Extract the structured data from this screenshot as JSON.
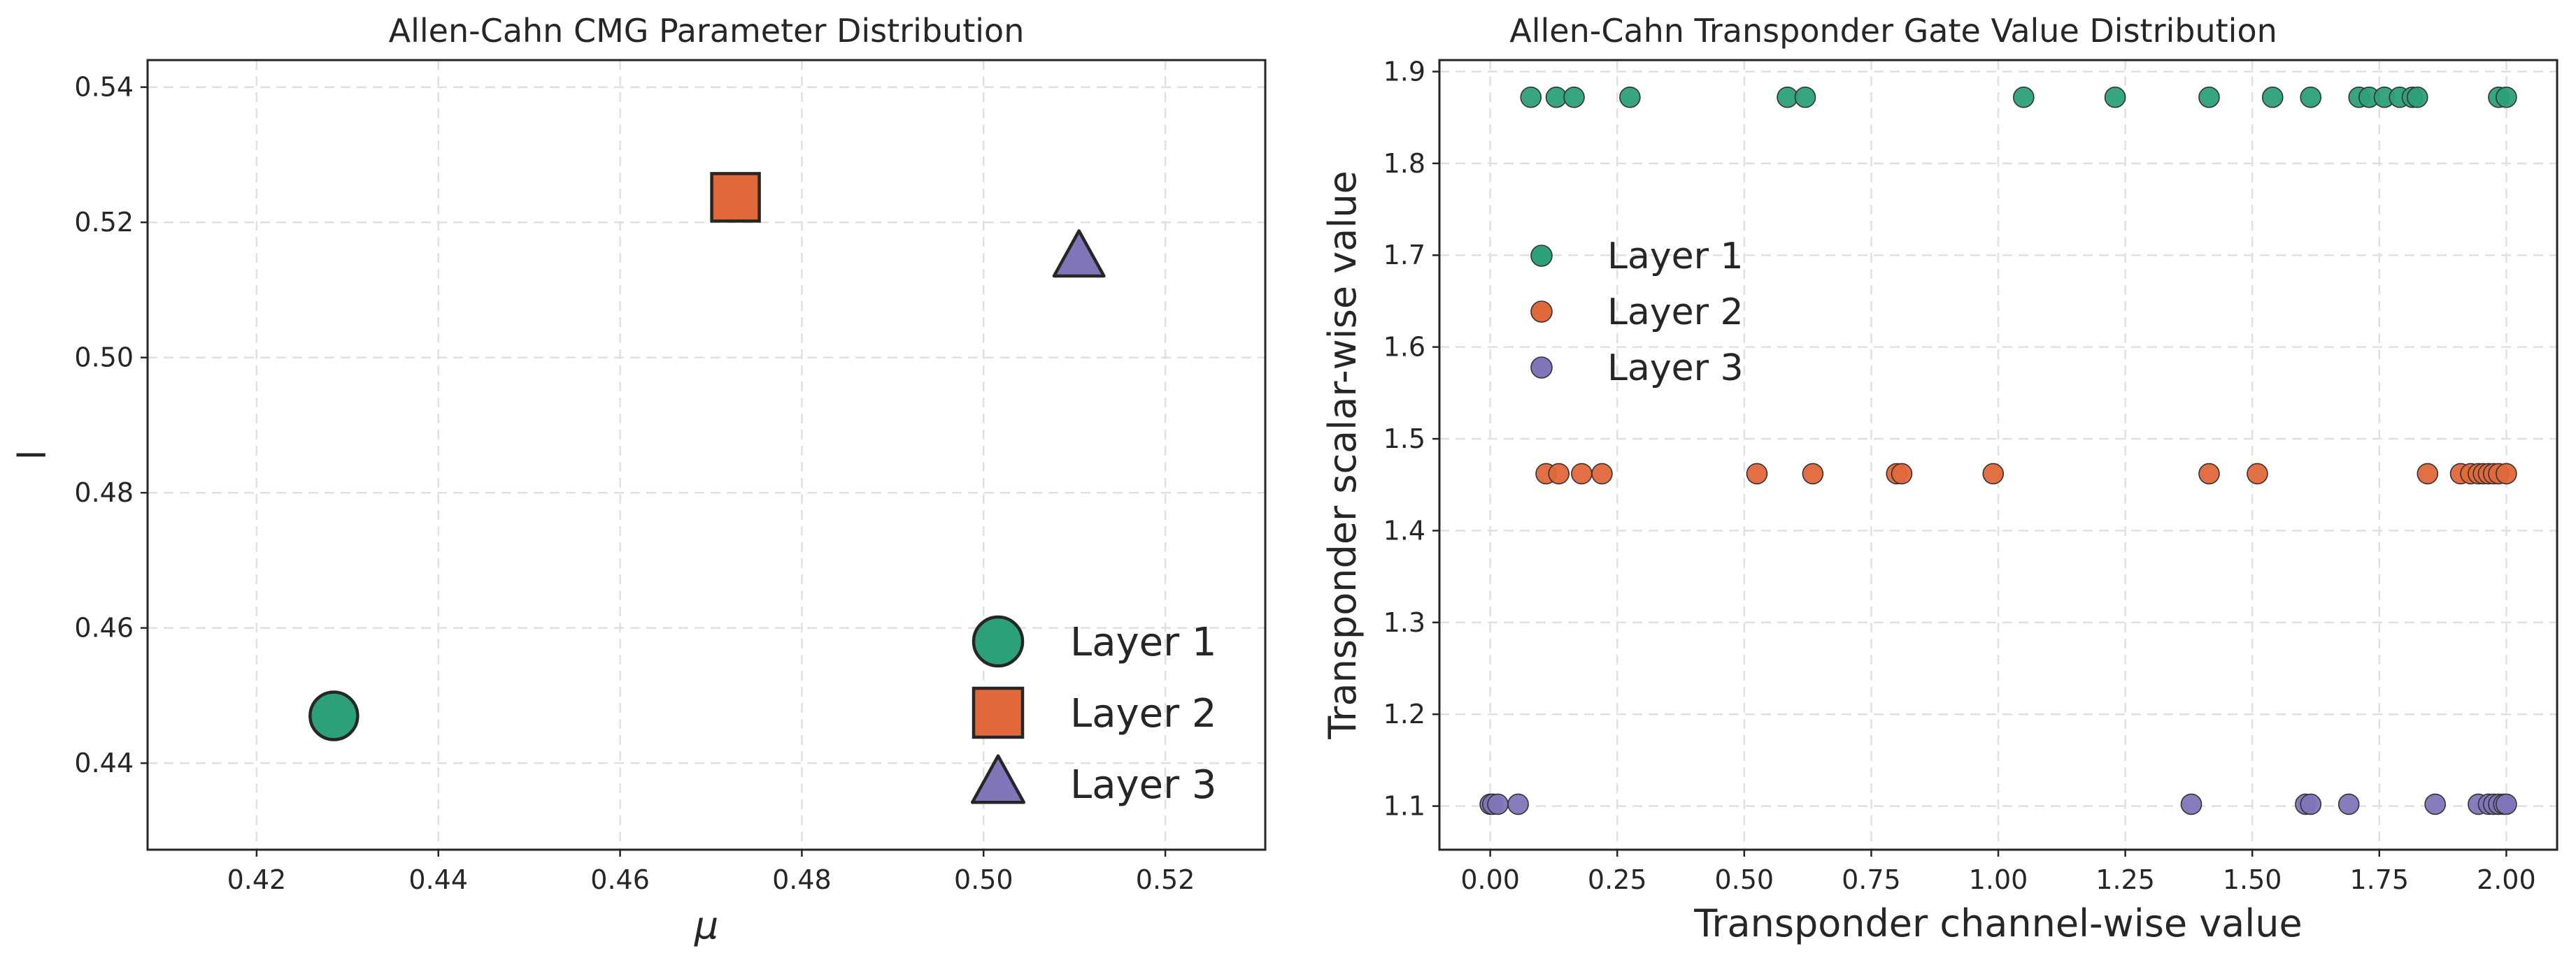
{
  "chart_data": [
    {
      "type": "scatter",
      "title": "Allen-Cahn CMG Parameter Distribution",
      "xlabel": "μ",
      "ylabel": "l",
      "xlim": [
        0.408,
        0.531
      ],
      "ylim": [
        0.4272,
        0.544
      ],
      "xticks": [
        0.42,
        0.44,
        0.46,
        0.48,
        0.5,
        0.52
      ],
      "yticks": [
        0.44,
        0.46,
        0.48,
        0.5,
        0.52,
        0.54
      ],
      "xtick_labels": [
        "0.42",
        "0.44",
        "0.46",
        "0.48",
        "0.50",
        "0.52"
      ],
      "ytick_labels": [
        "0.44",
        "0.46",
        "0.48",
        "0.50",
        "0.52",
        "0.54"
      ],
      "grid": true,
      "legend_position": "lower-right",
      "series": [
        {
          "name": "Layer 1",
          "marker": "circle",
          "color": "#2ca07a",
          "x": [
            0.4285
          ],
          "y": [
            0.447
          ]
        },
        {
          "name": "Layer 2",
          "marker": "square",
          "color": "#e0683a",
          "x": [
            0.4727
          ],
          "y": [
            0.5237
          ]
        },
        {
          "name": "Layer 3",
          "marker": "triangle",
          "color": "#7e76b8",
          "x": [
            0.5105
          ],
          "y": [
            0.5147
          ]
        }
      ]
    },
    {
      "type": "scatter",
      "title": "Allen-Cahn Transponder Gate Value Distribution",
      "xlabel": "Transponder channel-wise value",
      "ylabel": "Transponder scalar-wise value",
      "xlim": [
        -0.1,
        2.1
      ],
      "ylim": [
        1.0525,
        1.9125
      ],
      "xticks": [
        0.0,
        0.25,
        0.5,
        0.75,
        1.0,
        1.25,
        1.5,
        1.75,
        2.0
      ],
      "yticks": [
        1.1,
        1.2,
        1.3,
        1.4,
        1.5,
        1.6,
        1.7,
        1.8,
        1.9
      ],
      "xtick_labels": [
        "0.00",
        "0.25",
        "0.50",
        "0.75",
        "1.00",
        "1.25",
        "1.50",
        "1.75",
        "2.00"
      ],
      "ytick_labels": [
        "1.1",
        "1.2",
        "1.3",
        "1.4",
        "1.5",
        "1.6",
        "1.7",
        "1.8",
        "1.9"
      ],
      "grid": true,
      "legend_position": "upper-left",
      "series": [
        {
          "name": "Layer 1",
          "color": "#2ca07a",
          "y_value": 1.872,
          "x": [
            0.08,
            0.13,
            0.165,
            0.275,
            0.585,
            0.62,
            1.05,
            1.23,
            1.415,
            1.54,
            1.615,
            1.71,
            1.73,
            1.76,
            1.79,
            1.815,
            1.825,
            1.985,
            2.0
          ]
        },
        {
          "name": "Layer 2",
          "color": "#e0683a",
          "y_value": 1.462,
          "x": [
            0.11,
            0.135,
            0.18,
            0.22,
            0.525,
            0.635,
            0.8,
            0.81,
            0.99,
            1.415,
            1.51,
            1.845,
            1.91,
            1.93,
            1.945,
            1.955,
            1.965,
            1.975,
            1.985,
            2.0
          ]
        },
        {
          "name": "Layer 3",
          "color": "#7e76b8",
          "y_value": 1.102,
          "x": [
            0.0,
            0.005,
            0.015,
            0.055,
            1.38,
            1.605,
            1.615,
            1.69,
            1.86,
            1.945,
            1.965,
            1.975,
            1.985,
            1.995,
            2.0
          ]
        }
      ]
    }
  ]
}
